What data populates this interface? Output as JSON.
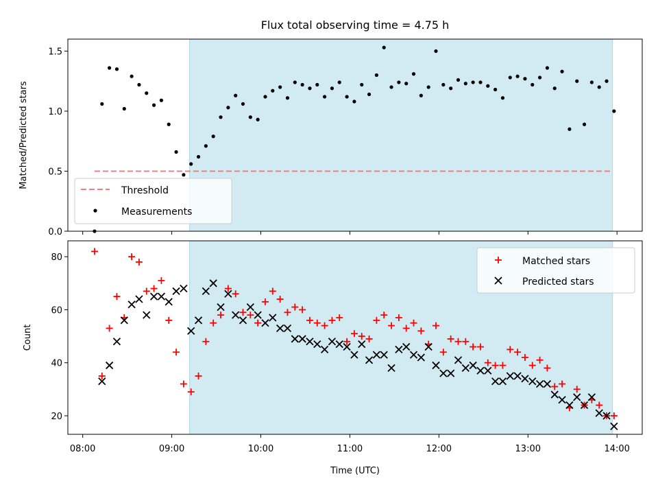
{
  "chart_data": [
    {
      "type": "scatter",
      "title": "Flux total observing time = 4.75 h",
      "xlabel": "",
      "ylabel": "Matched/Predicted stars",
      "xlim": [
        "07:50",
        "14:17"
      ],
      "ylim": [
        0.0,
        1.6
      ],
      "yticks": [
        "0.0",
        "0.5",
        "1.0",
        "1.5"
      ],
      "shaded_interval": [
        "09:12",
        "13:57"
      ],
      "shade_color": "#add8e6",
      "legend": {
        "placement": "lower-left",
        "entries": [
          "Threshold",
          "Measurements"
        ]
      },
      "threshold": {
        "name": "Threshold",
        "y": 0.5,
        "x_range": [
          "08:08",
          "13:57"
        ],
        "color": "#f08080"
      },
      "series": [
        {
          "name": "Measurements",
          "color": "#000000",
          "x": [
            "08:08",
            "08:13",
            "08:18",
            "08:23",
            "08:28",
            "08:33",
            "08:38",
            "08:43",
            "08:48",
            "08:53",
            "08:58",
            "09:03",
            "09:08",
            "09:13",
            "09:18",
            "09:23",
            "09:28",
            "09:33",
            "09:38",
            "09:43",
            "09:48",
            "09:53",
            "09:58",
            "10:03",
            "10:08",
            "10:13",
            "10:18",
            "10:23",
            "10:28",
            "10:33",
            "10:38",
            "10:43",
            "10:48",
            "10:53",
            "10:58",
            "11:03",
            "11:08",
            "11:13",
            "11:18",
            "11:23",
            "11:28",
            "11:33",
            "11:38",
            "11:43",
            "11:48",
            "11:53",
            "11:58",
            "12:03",
            "12:08",
            "12:13",
            "12:18",
            "12:23",
            "12:28",
            "12:33",
            "12:38",
            "12:43",
            "12:48",
            "12:53",
            "12:58",
            "13:03",
            "13:08",
            "13:13",
            "13:18",
            "13:23",
            "13:28",
            "13:33",
            "13:38",
            "13:43",
            "13:48",
            "13:53",
            "13:58"
          ],
          "y": [
            0.0,
            1.06,
            1.36,
            1.35,
            1.02,
            1.29,
            1.22,
            1.15,
            1.05,
            1.09,
            0.89,
            0.66,
            0.47,
            0.56,
            0.62,
            0.71,
            0.79,
            0.95,
            1.03,
            1.13,
            1.06,
            0.95,
            0.93,
            1.12,
            1.17,
            1.2,
            1.11,
            1.24,
            1.22,
            1.19,
            1.22,
            1.12,
            1.19,
            1.24,
            1.12,
            1.08,
            1.22,
            1.14,
            1.3,
            1.53,
            1.2,
            1.24,
            1.23,
            1.31,
            1.13,
            1.2,
            1.5,
            1.22,
            1.19,
            1.26,
            1.23,
            1.24,
            1.24,
            1.21,
            1.18,
            1.11,
            1.28,
            1.29,
            1.27,
            1.22,
            1.28,
            1.36,
            1.19,
            1.33,
            0.85,
            1.25,
            0.89,
            1.24,
            1.2,
            1.25,
            1.0
          ]
        }
      ]
    },
    {
      "type": "scatter",
      "title": "",
      "xlabel": "Time (UTC)",
      "ylabel": "Count",
      "xlim": [
        "07:50",
        "14:17"
      ],
      "ylim": [
        13,
        86
      ],
      "yticks": [
        "20",
        "40",
        "60",
        "80"
      ],
      "xticks": [
        "08:00",
        "09:00",
        "10:00",
        "11:00",
        "12:00",
        "13:00",
        "14:00"
      ],
      "shaded_interval": [
        "09:12",
        "13:57"
      ],
      "shade_color": "#add8e6",
      "legend": {
        "placement": "top-right",
        "entries": [
          "Matched stars",
          "Predicted stars"
        ]
      },
      "series": [
        {
          "name": "Matched stars",
          "marker": "plus",
          "color": "#ff0000",
          "x": [
            "08:08",
            "08:13",
            "08:18",
            "08:23",
            "08:28",
            "08:33",
            "08:38",
            "08:43",
            "08:48",
            "08:53",
            "08:58",
            "09:03",
            "09:08",
            "09:13",
            "09:18",
            "09:23",
            "09:28",
            "09:33",
            "09:38",
            "09:43",
            "09:48",
            "09:53",
            "09:58",
            "10:03",
            "10:08",
            "10:13",
            "10:18",
            "10:23",
            "10:28",
            "10:33",
            "10:38",
            "10:43",
            "10:48",
            "10:53",
            "10:58",
            "11:03",
            "11:08",
            "11:13",
            "11:18",
            "11:23",
            "11:28",
            "11:33",
            "11:38",
            "11:43",
            "11:48",
            "11:53",
            "11:58",
            "12:03",
            "12:08",
            "12:13",
            "12:18",
            "12:23",
            "12:28",
            "12:33",
            "12:38",
            "12:43",
            "12:48",
            "12:53",
            "12:58",
            "13:03",
            "13:08",
            "13:13",
            "13:18",
            "13:23",
            "13:28",
            "13:33",
            "13:38",
            "13:43",
            "13:48",
            "13:53",
            "13:58"
          ],
          "y": [
            82,
            35,
            53,
            65,
            57,
            80,
            78,
            67,
            68,
            71,
            56,
            44,
            32,
            29,
            35,
            48,
            55,
            58,
            68,
            66,
            59,
            58,
            55,
            63,
            67,
            64,
            59,
            61,
            60,
            56,
            55,
            54,
            56,
            57,
            48,
            51,
            50,
            49,
            56,
            58,
            54,
            57,
            53,
            55,
            52,
            47,
            54,
            44,
            49,
            48,
            48,
            46,
            46,
            40,
            39,
            39,
            45,
            44,
            42,
            39,
            41,
            38,
            31,
            32,
            23,
            30,
            24,
            26,
            24,
            20,
            20
          ]
        },
        {
          "name": "Predicted stars",
          "marker": "x",
          "color": "#000000",
          "x": [
            "08:13",
            "08:18",
            "08:23",
            "08:28",
            "08:33",
            "08:38",
            "08:43",
            "08:48",
            "08:53",
            "08:58",
            "09:03",
            "09:08",
            "09:13",
            "09:18",
            "09:23",
            "09:28",
            "09:33",
            "09:38",
            "09:43",
            "09:48",
            "09:53",
            "09:58",
            "10:03",
            "10:08",
            "10:13",
            "10:18",
            "10:23",
            "10:28",
            "10:33",
            "10:38",
            "10:43",
            "10:48",
            "10:53",
            "10:58",
            "11:03",
            "11:08",
            "11:13",
            "11:18",
            "11:23",
            "11:28",
            "11:33",
            "11:38",
            "11:43",
            "11:48",
            "11:53",
            "11:58",
            "12:03",
            "12:08",
            "12:13",
            "12:18",
            "12:23",
            "12:28",
            "12:33",
            "12:38",
            "12:43",
            "12:48",
            "12:53",
            "12:58",
            "13:03",
            "13:08",
            "13:13",
            "13:18",
            "13:23",
            "13:28",
            "13:33",
            "13:38",
            "13:43",
            "13:48",
            "13:53",
            "13:58"
          ],
          "y": [
            33,
            39,
            48,
            56,
            62,
            64,
            58,
            65,
            65,
            63,
            67,
            68,
            52,
            56,
            67,
            70,
            61,
            66,
            58,
            56,
            61,
            58,
            55,
            57,
            53,
            53,
            49,
            49,
            48,
            47,
            45,
            48,
            47,
            46,
            43,
            47,
            41,
            43,
            43,
            38,
            45,
            46,
            43,
            42,
            46,
            39,
            36,
            36,
            41,
            38,
            39,
            37,
            37,
            33,
            33,
            35,
            35,
            34,
            33,
            32,
            32,
            28,
            26,
            24,
            27,
            24,
            27,
            21,
            20,
            16
          ]
        }
      ]
    }
  ]
}
